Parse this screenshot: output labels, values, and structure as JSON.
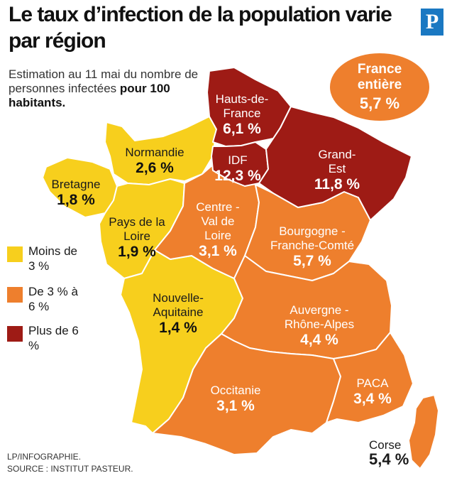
{
  "title": "Le taux d’infection de la population varie par région",
  "logo": "P",
  "subtitle": {
    "part1": "Estimation au 11 mai du nombre de personnes infectées ",
    "bold": "pour 100 habitants."
  },
  "badge": {
    "label": "France entière",
    "value": "5,7 %"
  },
  "regions": [
    {
      "id": "hauts-de-france",
      "name": "Hauts-de-France",
      "value": "6,1 %",
      "value_num": 6.1,
      "category": "Plus de 6 %"
    },
    {
      "id": "idf",
      "name": "IDF",
      "value": "12,3 %",
      "value_num": 12.3,
      "category": "Plus de 6 %"
    },
    {
      "id": "grand-est",
      "name": "Grand-Est",
      "value": "11,8 %",
      "value_num": 11.8,
      "category": "Plus de 6 %"
    },
    {
      "id": "normandie",
      "name": "Normandie",
      "value": "2,6 %",
      "value_num": 2.6,
      "category": "Moins de 3 %"
    },
    {
      "id": "bretagne",
      "name": "Bretagne",
      "value": "1,8 %",
      "value_num": 1.8,
      "category": "Moins de 3 %"
    },
    {
      "id": "pays-de-la-loire",
      "name": "Pays de la Loire",
      "value": "1,9 %",
      "value_num": 1.9,
      "category": "Moins de 3 %"
    },
    {
      "id": "centre-val-de-loire",
      "name": "Centre - Val de Loire",
      "value": "3,1 %",
      "value_num": 3.1,
      "category": "De 3 % à 6 %"
    },
    {
      "id": "bourgogne-franche-comte",
      "name": "Bourgogne - Franche-Comté",
      "value": "5,7 %",
      "value_num": 5.7,
      "category": "De 3 % à 6 %"
    },
    {
      "id": "nouvelle-aquitaine",
      "name": "Nouvelle-Aquitaine",
      "value": "1,4 %",
      "value_num": 1.4,
      "category": "Moins de 3 %"
    },
    {
      "id": "auvergne-rhone-alpes",
      "name": "Auvergne - Rhône-Alpes",
      "value": "4,4 %",
      "value_num": 4.4,
      "category": "De 3 % à 6 %"
    },
    {
      "id": "occitanie",
      "name": "Occitanie",
      "value": "3,1 %",
      "value_num": 3.1,
      "category": "De 3 % à 6 %"
    },
    {
      "id": "paca",
      "name": "PACA",
      "value": "3,4 %",
      "value_num": 3.4,
      "category": "De 3 % à 6 %"
    },
    {
      "id": "corse",
      "name": "Corse",
      "value": "5,4 %",
      "value_num": 5.4,
      "category": "De 3 % à 6 %"
    }
  ],
  "legend": [
    {
      "label": "Moins de 3 %",
      "color": "#f7cf1d"
    },
    {
      "label": "De 3 % à 6 %",
      "color": "#ee7f2d"
    },
    {
      "label": "Plus de 6 %",
      "color": "#9e1b15"
    }
  ],
  "credit": {
    "line1": "LP/INFOGRAPHIE.",
    "line2": "SOURCE : INSTITUT PASTEUR."
  }
}
